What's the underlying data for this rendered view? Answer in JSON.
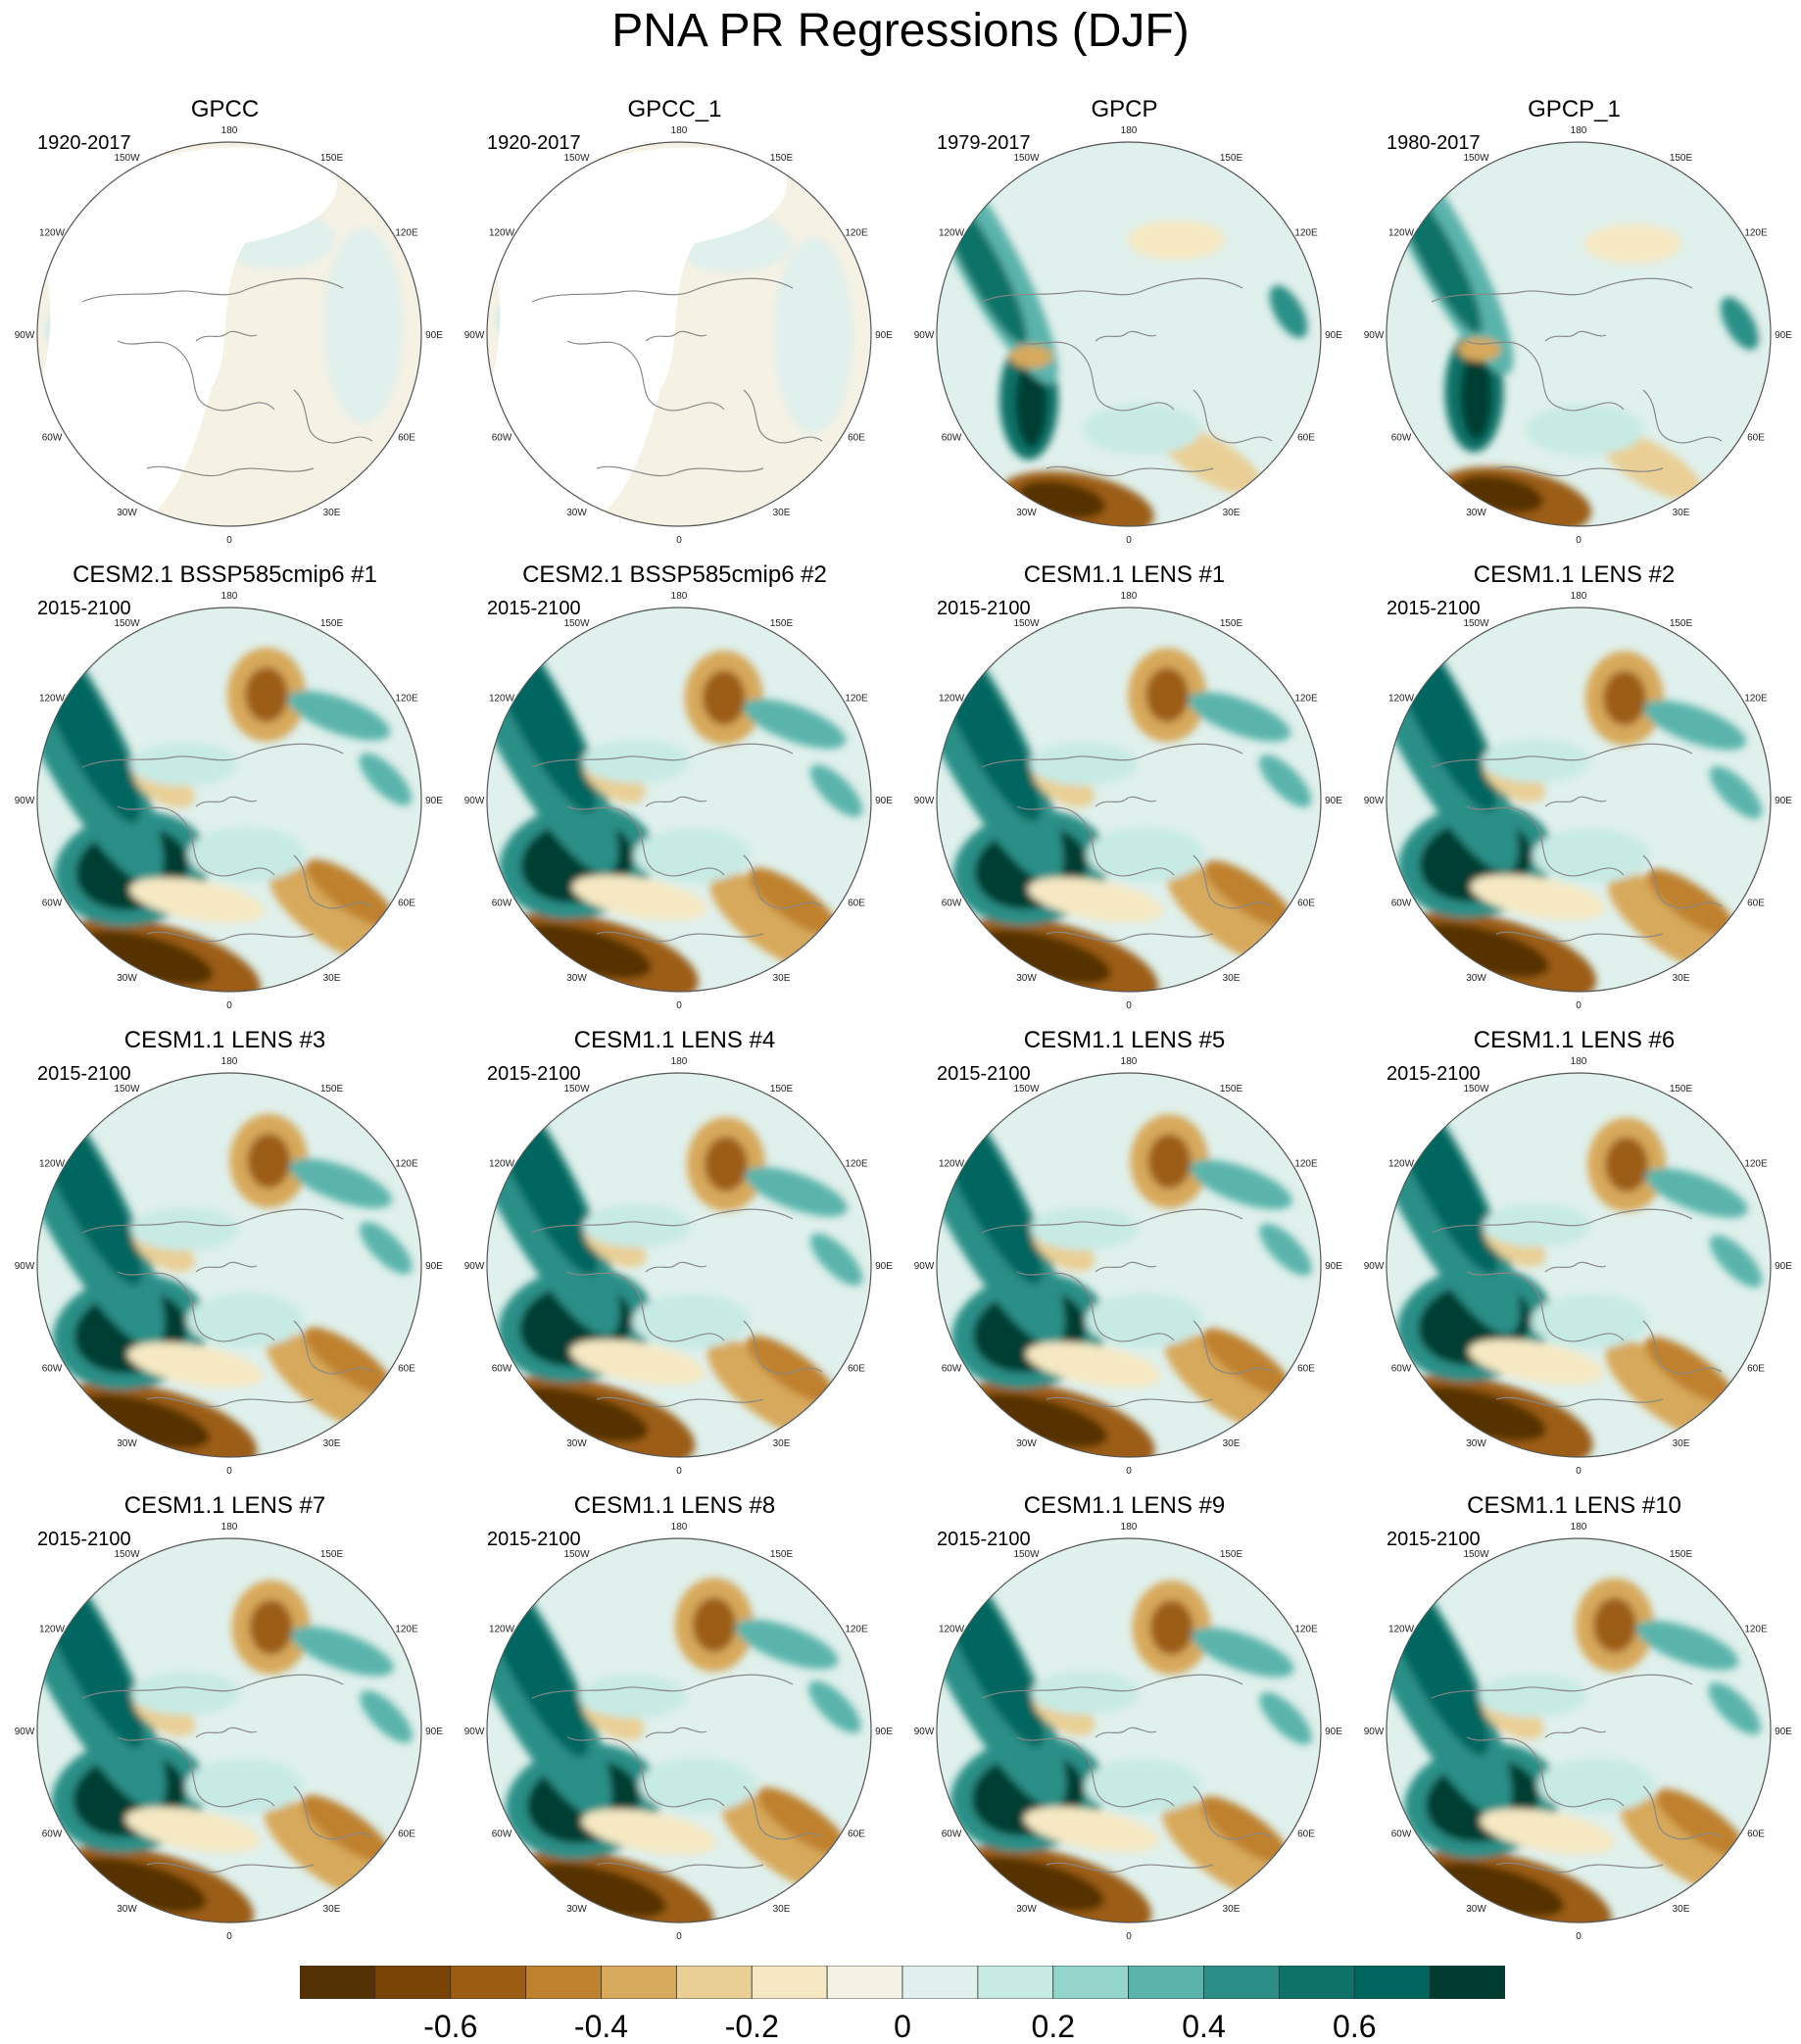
{
  "title": "PNA PR Regressions (DJF)",
  "longitude_labels": [
    "180",
    "150E",
    "120E",
    "90E",
    "60E",
    "30E",
    "0",
    "30W",
    "60W",
    "90W",
    "120W",
    "150W"
  ],
  "colors": {
    "land_outline": "#888888",
    "frame": "#555555",
    "missing": "#ffffff",
    "palette": [
      "#543005",
      "#7a4407",
      "#9c5d13",
      "#bf812d",
      "#d7a95c",
      "#e9cf96",
      "#f6e8c3",
      "#f5f1e4",
      "#e0f0ec",
      "#c7eae5",
      "#93d5cb",
      "#5ab4ac",
      "#2c8f87",
      "#0f7268",
      "#01665e",
      "#003c30"
    ]
  },
  "colorbar": {
    "boundaries": [
      -0.7,
      -0.6,
      -0.5,
      -0.4,
      -0.3,
      -0.2,
      -0.1,
      0,
      0.1,
      0.2,
      0.3,
      0.4,
      0.5,
      0.6,
      0.7
    ],
    "labels": [
      "-0.6",
      "-0.4",
      "-0.2",
      "0",
      "0.2",
      "0.4",
      "0.6"
    ]
  },
  "panels": [
    {
      "title": "GPCC",
      "period": "1920-2017",
      "kind": "gpcc"
    },
    {
      "title": "GPCC_1",
      "period": "1920-2017",
      "kind": "gpcc"
    },
    {
      "title": "GPCP",
      "period": "1979-2017",
      "kind": "gpcp"
    },
    {
      "title": "GPCP_1",
      "period": "1980-2017",
      "kind": "gpcp"
    },
    {
      "title": "CESM2.1 BSSP585cmip6 #1",
      "period": "2015-2100",
      "kind": "model"
    },
    {
      "title": "CESM2.1 BSSP585cmip6 #2",
      "period": "2015-2100",
      "kind": "model"
    },
    {
      "title": "CESM1.1 LENS #1",
      "period": "2015-2100",
      "kind": "model"
    },
    {
      "title": "CESM1.1 LENS #2",
      "period": "2015-2100",
      "kind": "model"
    },
    {
      "title": "CESM1.1 LENS #3",
      "period": "2015-2100",
      "kind": "model"
    },
    {
      "title": "CESM1.1 LENS #4",
      "period": "2015-2100",
      "kind": "model"
    },
    {
      "title": "CESM1.1 LENS #5",
      "period": "2015-2100",
      "kind": "model"
    },
    {
      "title": "CESM1.1 LENS #6",
      "period": "2015-2100",
      "kind": "model"
    },
    {
      "title": "CESM1.1 LENS #7",
      "period": "2015-2100",
      "kind": "model"
    },
    {
      "title": "CESM1.1 LENS #8",
      "period": "2015-2100",
      "kind": "model"
    },
    {
      "title": "CESM1.1 LENS #9",
      "period": "2015-2100",
      "kind": "model"
    },
    {
      "title": "CESM1.1 LENS #10",
      "period": "2015-2100",
      "kind": "model"
    }
  ]
}
